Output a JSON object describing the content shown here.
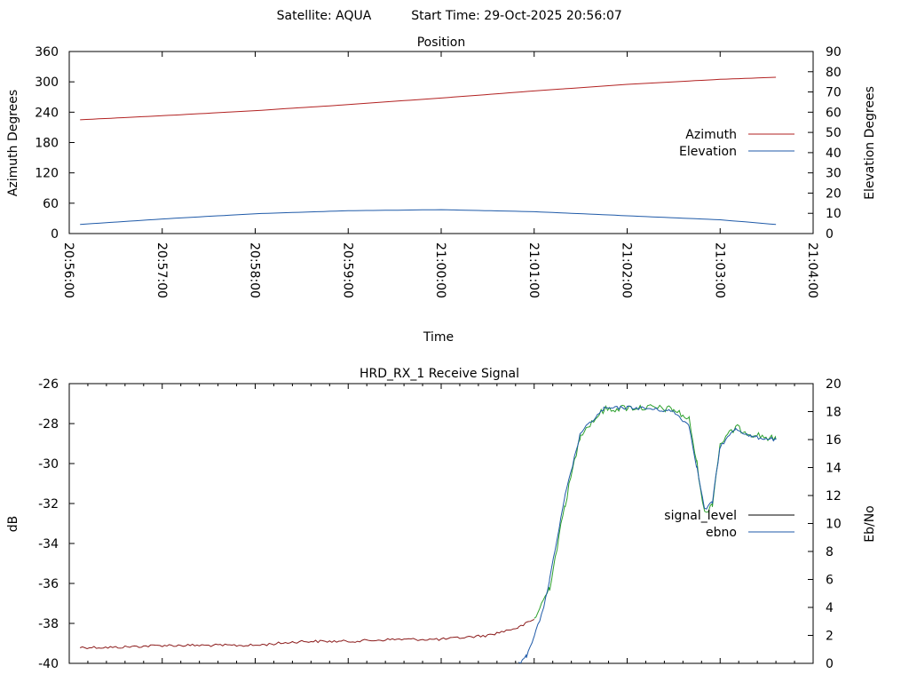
{
  "header": {
    "satellite_label": "Satellite: AQUA",
    "start_time_label": "Start Time: 29-Oct-2025 20:56:07"
  },
  "colors": {
    "azimuth": "#b22222",
    "elevation": "#1f5aa8",
    "signal_level": "#000000",
    "ebno": "#1f5aa8",
    "signal_low": "#8b1a1a",
    "signal_high": "#2ca02c"
  },
  "chart_data": [
    {
      "type": "line",
      "title": "Position",
      "xlabel": "Time",
      "ylabel": "Azimuth Degrees",
      "y2label": "Elevation Degrees",
      "x_ticks": [
        "20:56:00",
        "20:57:00",
        "20:58:00",
        "20:59:00",
        "21:00:00",
        "21:01:00",
        "21:02:00",
        "21:03:00",
        "21:04:00"
      ],
      "xlim_seconds_after_20_56_00": [
        0,
        480
      ],
      "ylim": [
        0,
        360
      ],
      "y_ticks": [
        "0",
        "60",
        "120",
        "180",
        "240",
        "300",
        "360"
      ],
      "y2lim": [
        0,
        90
      ],
      "y2_ticks": [
        "0",
        "10",
        "20",
        "30",
        "40",
        "50",
        "60",
        "70",
        "80",
        "90"
      ],
      "legend_position": "right",
      "series": [
        {
          "name": "Azimuth",
          "axis": "left",
          "x_seconds": [
            7,
            60,
            120,
            180,
            240,
            300,
            360,
            420,
            456
          ],
          "values": [
            225,
            233,
            243,
            255,
            268,
            282,
            295,
            305,
            309
          ]
        },
        {
          "name": "Elevation",
          "axis": "right",
          "x_seconds": [
            7,
            60,
            120,
            180,
            240,
            300,
            360,
            420,
            456
          ],
          "values": [
            4.5,
            7.2,
            9.8,
            11.3,
            11.8,
            10.8,
            8.8,
            6.8,
            4.5
          ]
        }
      ]
    },
    {
      "type": "line",
      "title": "HRD_RX_1 Receive Signal",
      "xlabel": "",
      "ylabel": "dB",
      "y2label": "Eb/No",
      "ylim": [
        -40,
        -26
      ],
      "y_ticks": [
        "-40",
        "-38",
        "-36",
        "-34",
        "-32",
        "-30",
        "-28",
        "-26"
      ],
      "y2lim": [
        0,
        20
      ],
      "y2_ticks": [
        "0",
        "2",
        "4",
        "6",
        "8",
        "10",
        "12",
        "14",
        "16",
        "18",
        "20"
      ],
      "legend_position": "right",
      "series": [
        {
          "name": "signal_level",
          "axis": "left",
          "x_seconds": [
            7,
            30,
            60,
            90,
            120,
            150,
            180,
            210,
            240,
            270,
            290,
            300,
            310,
            320,
            330,
            345,
            360,
            375,
            390,
            400,
            405,
            410,
            415,
            420,
            430,
            440,
            456
          ],
          "values": [
            -39.2,
            -39.2,
            -39.1,
            -39.1,
            -39.1,
            -38.9,
            -38.9,
            -38.8,
            -38.8,
            -38.6,
            -38.2,
            -37.8,
            -36.2,
            -32.0,
            -28.5,
            -27.3,
            -27.2,
            -27.2,
            -27.3,
            -27.8,
            -30.0,
            -32.5,
            -32.0,
            -29.0,
            -28.2,
            -28.5,
            -28.8
          ]
        },
        {
          "name": "ebno",
          "axis": "right",
          "x_seconds": [
            290,
            295,
            300,
            305,
            310,
            320,
            330,
            345,
            360,
            375,
            390,
            400,
            405,
            410,
            415,
            420,
            430,
            440,
            456
          ],
          "values": [
            0,
            0.5,
            2.0,
            3.5,
            6.0,
            12.0,
            16.5,
            18.2,
            18.3,
            18.2,
            18.0,
            17.0,
            14.0,
            11.0,
            11.5,
            15.5,
            16.8,
            16.2,
            16.0
          ]
        }
      ]
    }
  ]
}
